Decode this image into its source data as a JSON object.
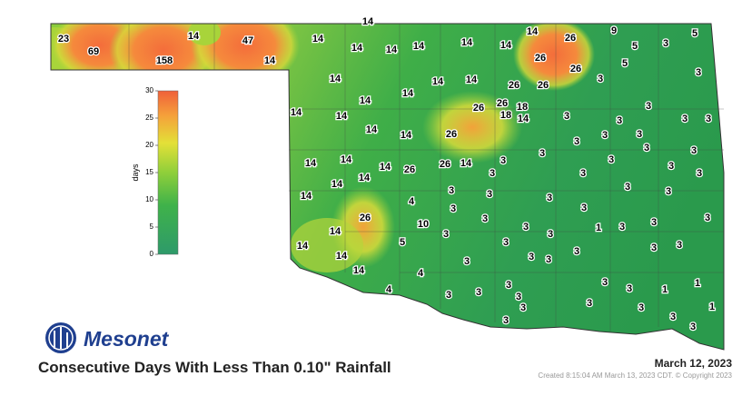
{
  "logo": "Mesonet",
  "title": "Consecutive Days With Less Than 0.10\" Rainfall",
  "date": "March 12, 2023",
  "credit": "Created 8:15:04 AM March 13, 2023 CDT. © Copyright 2023",
  "legend": {
    "label": "days",
    "range": [
      0,
      30
    ],
    "ticks": [
      0,
      5,
      10,
      15,
      20,
      25,
      30
    ]
  },
  "stations": [
    23,
    69,
    14,
    158,
    47,
    14,
    14,
    14,
    14,
    14,
    14,
    14,
    14,
    14,
    26,
    9,
    5,
    3,
    5,
    26,
    26,
    5,
    3,
    14,
    14,
    14,
    26,
    26,
    3,
    14,
    14,
    26,
    26,
    18,
    3,
    14,
    14,
    18,
    14,
    3,
    3,
    3,
    3,
    14,
    14,
    26,
    3,
    3,
    3,
    14,
    14,
    14,
    26,
    26,
    14,
    3,
    3,
    3,
    3,
    3,
    14,
    14,
    3,
    3,
    3,
    3,
    14,
    4,
    3,
    3,
    3,
    3,
    3,
    26,
    10,
    3,
    3,
    3,
    3,
    1,
    3,
    3,
    3,
    14,
    3,
    3,
    3,
    3,
    14,
    5,
    3,
    3,
    14,
    3,
    3,
    14,
    4,
    3,
    4,
    3,
    3,
    3,
    3,
    3,
    1,
    3,
    3,
    3,
    1,
    1,
    3,
    3,
    3,
    3
  ]
}
